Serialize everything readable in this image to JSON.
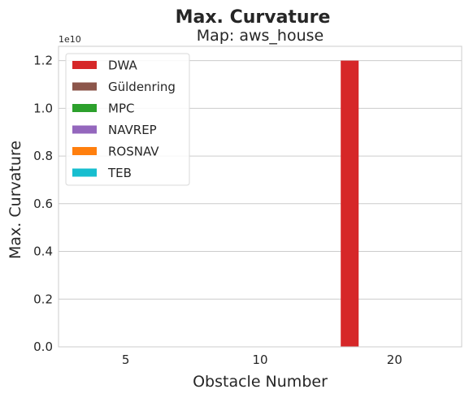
{
  "chart_data": {
    "type": "bar",
    "title": "Max. Curvature",
    "subtitle": "Map: aws_house",
    "xlabel": "Obstacle Number",
    "ylabel": "Max. Curvature",
    "y_exponent_label": "1e10",
    "y_scale": 10000000000,
    "ylim": [
      0,
      1.26
    ],
    "yticks": [
      0.0,
      0.2,
      0.4,
      0.6,
      0.8,
      1.0,
      1.2
    ],
    "ytick_labels": [
      "0.0",
      "0.2",
      "0.4",
      "0.6",
      "0.8",
      "1.0",
      "1.2"
    ],
    "categories": [
      "5",
      "10",
      "20"
    ],
    "grid": "y",
    "legend_position": "top-left",
    "series": [
      {
        "name": "DWA",
        "color": "#d62728",
        "values": [
          0,
          0,
          1.2
        ]
      },
      {
        "name": "Güldenring",
        "color": "#8c564b",
        "values": [
          0,
          0,
          0
        ]
      },
      {
        "name": "MPC",
        "color": "#2ca02c",
        "values": [
          0,
          0,
          0
        ]
      },
      {
        "name": "NAVREP",
        "color": "#9467bd",
        "values": [
          0,
          0,
          0
        ]
      },
      {
        "name": "ROSNAV",
        "color": "#ff7f0e",
        "values": [
          0,
          0,
          0
        ]
      },
      {
        "name": "TEB",
        "color": "#17becf",
        "values": [
          0,
          0,
          0
        ]
      }
    ]
  }
}
